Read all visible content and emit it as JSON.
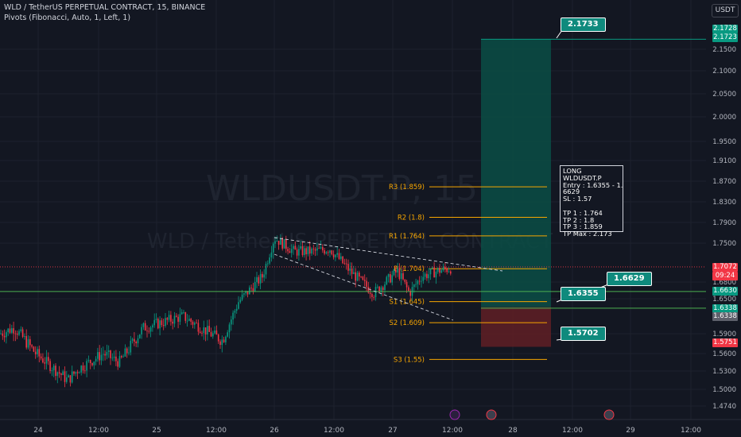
{
  "header": {
    "symbol_line": "WLD / TetherUS PERPETUAL CONTRACT, 15, BINANCE",
    "indicator_line": "Pivots (Fibonacci, Auto, 1, Left, 1)",
    "currency": "USDT"
  },
  "watermark": {
    "ticker": "WLDUSDT.P, 15",
    "name": "WLD / TetherUS PERPETUAL CONTRACT"
  },
  "chart_data": {
    "type": "candlestick",
    "y_ticks": [
      "2.1500",
      "2.1000",
      "2.0500",
      "2.0000",
      "1.9500",
      "1.9100",
      "1.8700",
      "1.8300",
      "1.7900",
      "1.7500",
      "1.6800",
      "1.6500",
      "1.5900",
      "1.5600",
      "1.5300",
      "1.5000",
      "1.4740"
    ],
    "x_ticks": [
      "24",
      "12:00",
      "25",
      "12:00",
      "26",
      "12:00",
      "27",
      "12:00",
      "28",
      "12:00",
      "29",
      "12:00"
    ],
    "pivots": [
      {
        "label": "R3 (1.859)",
        "value": 1.859
      },
      {
        "label": "R2 (1.8)",
        "value": 1.8
      },
      {
        "label": "R1 (1.764)",
        "value": 1.764
      },
      {
        "label": "P (1.704)",
        "value": 1.704
      },
      {
        "label": "S1 (1.645)",
        "value": 1.645
      },
      {
        "label": "S2 (1.609)",
        "value": 1.609
      },
      {
        "label": "S3 (1.55)",
        "value": 1.55
      }
    ],
    "price_boxes": [
      {
        "text": "2.1728",
        "color": "#089981"
      },
      {
        "text": "2.1723",
        "color": "#089981"
      },
      {
        "text": "1.7072",
        "color": "#f23645"
      },
      {
        "text": "09:24",
        "color": "#f23645"
      },
      {
        "text": "1.6630",
        "color": "#089981"
      },
      {
        "text": "1.6338",
        "color": "#089981"
      },
      {
        "text": "1.6338",
        "color": "#5d606b"
      },
      {
        "text": "1.5751",
        "color": "#f23645"
      }
    ],
    "target_tags": [
      "2.1733",
      "1.6629",
      "1.6355",
      "1.5702"
    ],
    "trade_info": {
      "side": "LONG",
      "symbol": "WLDUSDT.P",
      "entry": "Entry : 1.6355 - 1.\n6629",
      "sl": "SL : 1.57",
      "tp1": "TP 1 : 1.764",
      "tp2": "TP 2 : 1.8",
      "tp3": "TP 3 : 1.859",
      "tpmax": "TP Max : 2.173"
    },
    "colors": {
      "up": "#089981",
      "down": "#f23645",
      "pivot": "#f7a600",
      "target_zone": "#0b4d45",
      "stop_zone": "#5c1e25"
    }
  }
}
